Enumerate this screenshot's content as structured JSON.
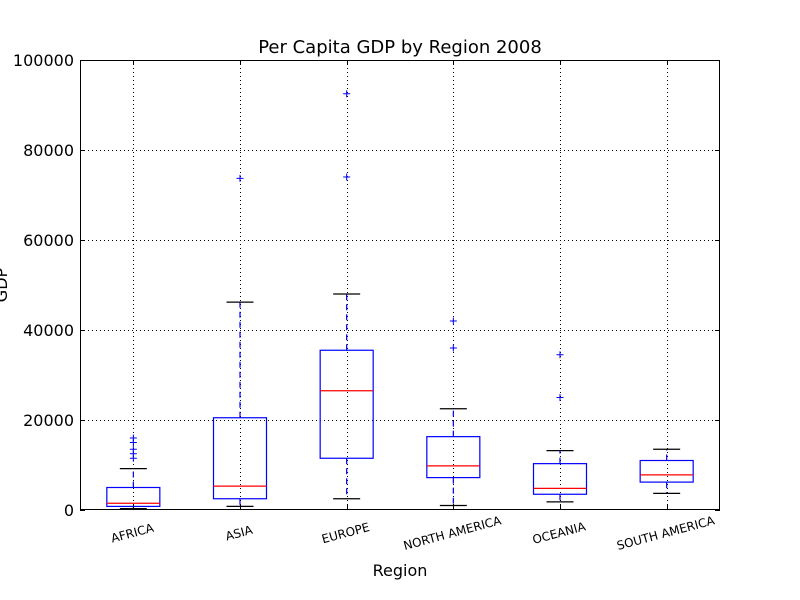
{
  "chart_data": {
    "type": "boxplot",
    "title": "Per Capita GDP by Region 2008",
    "xlabel": "Region",
    "ylabel": "GDP",
    "ylim": [
      0,
      100000
    ],
    "yticks": [
      "0",
      "20000",
      "40000",
      "60000",
      "80000",
      "100000"
    ],
    "grid": true,
    "colors": {
      "box": "#0000ff",
      "median": "#ff0000",
      "grid": "#000000"
    },
    "categories": [
      "AFRICA",
      "ASIA",
      "EUROPE",
      "NORTH AMERICA",
      "OCEANIA",
      "SOUTH AMERICA"
    ],
    "boxes": [
      {
        "category": "AFRICA",
        "whisker_low": 300,
        "q1": 800,
        "median": 1500,
        "q3": 5000,
        "whisker_high": 9200,
        "outliers": [
          11500,
          12500,
          13500,
          15000,
          16000
        ]
      },
      {
        "category": "ASIA",
        "whisker_low": 800,
        "q1": 2500,
        "median": 5300,
        "q3": 20500,
        "whisker_high": 46200,
        "outliers": [
          73700
        ]
      },
      {
        "category": "EUROPE",
        "whisker_low": 2500,
        "q1": 11500,
        "median": 26500,
        "q3": 35500,
        "whisker_high": 48000,
        "outliers": [
          74000,
          92500
        ]
      },
      {
        "category": "NORTH AMERICA",
        "whisker_low": 1000,
        "q1": 7200,
        "median": 9800,
        "q3": 16300,
        "whisker_high": 22500,
        "outliers": [
          36000,
          42000
        ]
      },
      {
        "category": "OCEANIA",
        "whisker_low": 1800,
        "q1": 3500,
        "median": 4800,
        "q3": 10300,
        "whisker_high": 13200,
        "outliers": [
          25000,
          34500
        ]
      },
      {
        "category": "SOUTH AMERICA",
        "whisker_low": 3700,
        "q1": 6200,
        "median": 7800,
        "q3": 11000,
        "whisker_high": 13500,
        "outliers": []
      }
    ]
  }
}
